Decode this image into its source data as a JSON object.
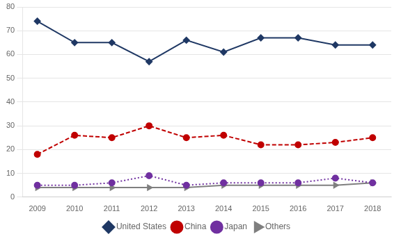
{
  "chart_data": {
    "type": "line",
    "x": [
      2009,
      2010,
      2011,
      2012,
      2013,
      2014,
      2015,
      2016,
      2017,
      2018
    ],
    "series": [
      {
        "name": "United States",
        "color": "#1F3864",
        "marker": "diamond",
        "line_style": "solid",
        "values": [
          74,
          65,
          65,
          57,
          66,
          61,
          67,
          67,
          64,
          64
        ]
      },
      {
        "name": "China",
        "color": "#C00000",
        "marker": "circle",
        "line_style": "dashed",
        "values": [
          18,
          26,
          25,
          30,
          25,
          26,
          22,
          22,
          23,
          25
        ]
      },
      {
        "name": "Japan",
        "color": "#7030A0",
        "marker": "circle",
        "line_style": "dotted",
        "values": [
          5,
          5,
          6,
          9,
          5,
          6,
          6,
          6,
          8,
          6
        ]
      },
      {
        "name": "Others",
        "color": "#7F7F7F",
        "marker": "triangle_right",
        "line_style": "solid",
        "values": [
          4,
          4,
          4,
          4,
          4,
          5,
          5,
          5,
          5,
          6
        ]
      }
    ],
    "xlim": [
      2008.6,
      2018.5
    ],
    "xticks": [
      2009,
      2010,
      2011,
      2012,
      2013,
      2014,
      2015,
      2016,
      2017,
      2018
    ],
    "ylim": [
      0,
      80
    ],
    "yticks": [
      0,
      10,
      20,
      30,
      40,
      50,
      60,
      70,
      80
    ],
    "grid": true,
    "legend": "bottom"
  }
}
